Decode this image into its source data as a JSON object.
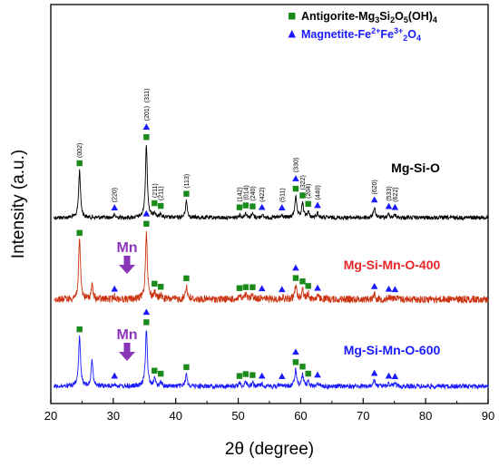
{
  "chart_data": {
    "type": "line",
    "xlabel": "2θ  (degree)",
    "ylabel": "Intensity (a.u.)",
    "xlim": [
      20,
      90
    ],
    "x_ticks": [
      20,
      30,
      40,
      50,
      60,
      70,
      80,
      90
    ],
    "y_ticks_shown": false,
    "legend_position": "top-right",
    "legend": [
      {
        "marker": "square",
        "color": "#1a8a1a",
        "label_base": "Antigorite-Mg",
        "label_parts": [
          "3",
          "Si",
          "2",
          "O",
          "5",
          "(OH)",
          "4"
        ]
      },
      {
        "marker": "triangle",
        "color": "#1a1aff",
        "label_base": "Magnetite-Fe",
        "label_parts": [
          "2+",
          "Fe",
          "3+",
          "2",
          "O",
          "4"
        ]
      }
    ],
    "series": [
      {
        "name": "Mg-Si-O",
        "color": "#000000",
        "label_color": "#000000",
        "baseline": 0.0,
        "peaks": [
          [
            24.6,
            1.0
          ],
          [
            30.2,
            0.05
          ],
          [
            35.3,
            1.55
          ],
          [
            36.6,
            0.12
          ],
          [
            37.6,
            0.08
          ],
          [
            41.7,
            0.35
          ],
          [
            50.2,
            0.06
          ],
          [
            51.2,
            0.1
          ],
          [
            52.3,
            0.08
          ],
          [
            53.8,
            0.06
          ],
          [
            57.0,
            0.05
          ],
          [
            59.2,
            0.45
          ],
          [
            60.3,
            0.3
          ],
          [
            61.2,
            0.12
          ],
          [
            62.7,
            0.1
          ],
          [
            71.8,
            0.22
          ],
          [
            74.1,
            0.08
          ],
          [
            75.1,
            0.06
          ]
        ],
        "squares": [
          24.6,
          35.3,
          36.6,
          37.6,
          41.7,
          50.2,
          51.2,
          52.3,
          59.2,
          60.3,
          61.2
        ],
        "triangles": [
          30.2,
          35.3,
          53.8,
          57.0,
          59.2,
          62.7,
          71.8,
          74.1,
          75.1
        ]
      },
      {
        "name": "Mg-Si-Mn-O-400",
        "color": "#cc3311",
        "label_color": "#e8262a",
        "baseline": 0.0,
        "peaks": [
          [
            24.6,
            1.3
          ],
          [
            26.6,
            0.3
          ],
          [
            30.2,
            0.06
          ],
          [
            35.3,
            1.5
          ],
          [
            36.6,
            0.15
          ],
          [
            37.6,
            0.1
          ],
          [
            41.7,
            0.3
          ],
          [
            50.2,
            0.08
          ],
          [
            51.2,
            0.1
          ],
          [
            52.3,
            0.1
          ],
          [
            53.8,
            0.07
          ],
          [
            57.0,
            0.05
          ],
          [
            59.2,
            0.3
          ],
          [
            60.3,
            0.22
          ],
          [
            61.2,
            0.12
          ],
          [
            62.7,
            0.08
          ],
          [
            71.8,
            0.12
          ],
          [
            74.1,
            0.06
          ],
          [
            75.1,
            0.05
          ]
        ],
        "squares": [
          24.6,
          35.3,
          36.6,
          37.6,
          41.7,
          50.2,
          51.2,
          52.3,
          59.2,
          60.3,
          61.2
        ],
        "triangles": [
          30.2,
          35.3,
          53.8,
          57.0,
          59.2,
          62.7,
          71.8,
          74.1,
          75.1
        ],
        "arrow_x": 32.2
      },
      {
        "name": "Mg-Si-Mn-O-600",
        "color": "#1a1aff",
        "label_color": "#1a1aff",
        "baseline": 0.0,
        "peaks": [
          [
            24.6,
            1.05
          ],
          [
            26.6,
            0.55
          ],
          [
            30.2,
            0.06
          ],
          [
            35.3,
            1.2
          ],
          [
            36.6,
            0.15
          ],
          [
            37.6,
            0.1
          ],
          [
            41.7,
            0.25
          ],
          [
            50.2,
            0.06
          ],
          [
            51.2,
            0.1
          ],
          [
            52.3,
            0.08
          ],
          [
            53.8,
            0.06
          ],
          [
            57.0,
            0.05
          ],
          [
            59.2,
            0.35
          ],
          [
            60.3,
            0.25
          ],
          [
            61.2,
            0.1
          ],
          [
            62.7,
            0.08
          ],
          [
            71.8,
            0.12
          ],
          [
            74.1,
            0.06
          ],
          [
            75.1,
            0.05
          ]
        ],
        "squares": [
          24.6,
          35.3,
          36.6,
          37.6,
          41.7,
          50.2,
          51.2,
          52.3,
          59.2,
          60.3,
          61.2
        ],
        "triangles": [
          30.2,
          35.3,
          53.8,
          57.0,
          59.2,
          62.7,
          71.8,
          74.1,
          75.1
        ],
        "arrow_x": 32.2
      }
    ],
    "annotations": {
      "arrow_label": "Mn",
      "arrow_color": "#8b35b8",
      "hkl_labels": [
        {
          "x": 24.6,
          "text": "(002)"
        },
        {
          "x": 30.2,
          "text": "(220)"
        },
        {
          "x": 35.3,
          "text": "(201)"
        },
        {
          "x": 35.3,
          "text": "(311)"
        },
        {
          "x": 36.6,
          "text": "(211)"
        },
        {
          "x": 37.6,
          "text": "(211)"
        },
        {
          "x": 41.7,
          "text": "(113)"
        },
        {
          "x": 50.2,
          "text": "(142)"
        },
        {
          "x": 51.2,
          "text": "(014)"
        },
        {
          "x": 52.3,
          "text": "(240)"
        },
        {
          "x": 53.8,
          "text": "(422)"
        },
        {
          "x": 57.0,
          "text": "(511)"
        },
        {
          "x": 59.2,
          "text": "(330)"
        },
        {
          "x": 60.3,
          "text": "(322)"
        },
        {
          "x": 61.2,
          "text": "(204)"
        },
        {
          "x": 62.7,
          "text": "(440)"
        },
        {
          "x": 71.8,
          "text": "(620)"
        },
        {
          "x": 74.1,
          "text": "(533)"
        },
        {
          "x": 75.1,
          "text": "(622)"
        }
      ]
    }
  }
}
